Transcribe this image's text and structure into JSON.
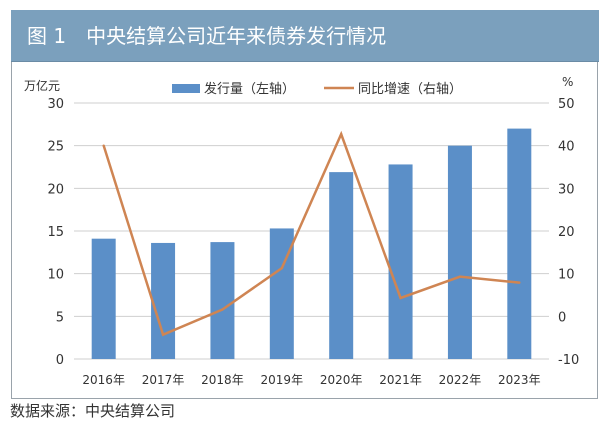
{
  "title": "图 1　中央结算公司近年来债券发行情况",
  "source": "数据来源：中央结算公司",
  "chart_data": {
    "type": "bar+line",
    "title": "图 1　中央结算公司近年来债券发行情况",
    "categories": [
      "2016年",
      "2017年",
      "2018年",
      "2019年",
      "2020年",
      "2021年",
      "2022年",
      "2023年"
    ],
    "left_axis": {
      "label": "万亿元",
      "range": [
        0,
        30
      ],
      "ticks": [
        0,
        5,
        10,
        15,
        20,
        25,
        30
      ]
    },
    "right_axis": {
      "label": "%",
      "range": [
        -10,
        50
      ],
      "ticks": [
        -10,
        0,
        10,
        20,
        30,
        40,
        50
      ]
    },
    "grid": true,
    "legend": "top",
    "series": [
      {
        "name": "发行量（左轴）",
        "type": "bar",
        "axis": "left",
        "color": "#5b8fc8",
        "values": [
          14.1,
          13.6,
          13.7,
          15.3,
          21.9,
          22.8,
          25.0,
          27.0
        ]
      },
      {
        "name": "同比增速（右轴）",
        "type": "line",
        "axis": "right",
        "color": "#cf8553",
        "values": [
          40.0,
          -4.3,
          1.6,
          11.3,
          42.7,
          4.3,
          9.3,
          7.9
        ]
      }
    ]
  }
}
